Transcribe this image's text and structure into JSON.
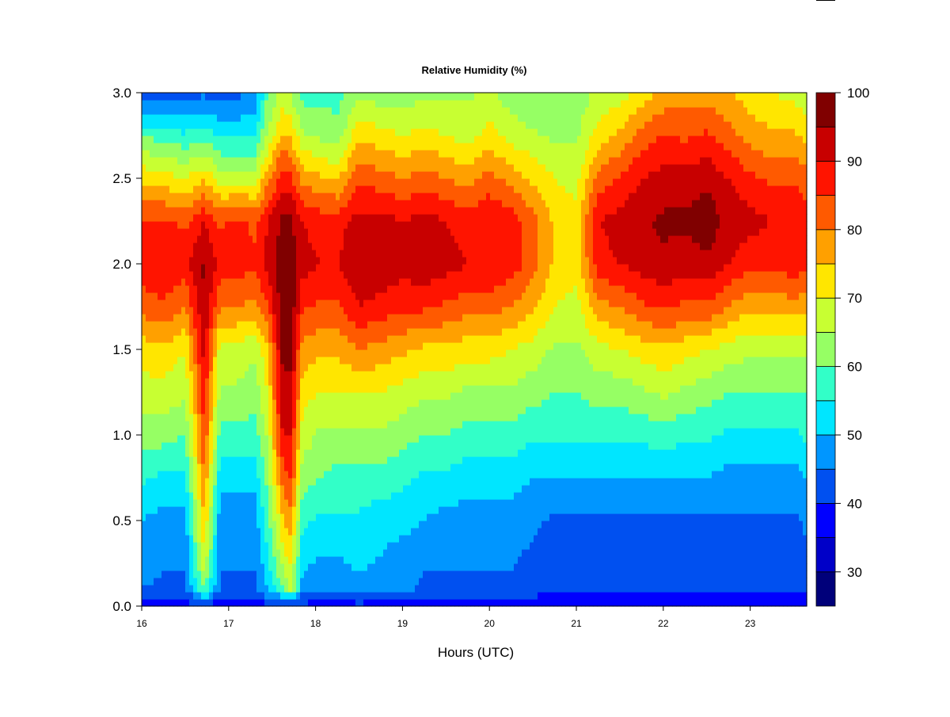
{
  "chart_data": {
    "type": "heatmap",
    "title": "Relative Humidity (%)",
    "xlabel": "Hours (UTC)",
    "ylabel": "",
    "xlim": [
      16,
      23.65
    ],
    "ylim": [
      0,
      3.0
    ],
    "x_ticks": [
      "16",
      "17",
      "18",
      "19",
      "20",
      "21",
      "22",
      "23"
    ],
    "y_ticks": [
      "0.0",
      "0.5",
      "1.0",
      "1.5",
      "2.0",
      "2.5",
      "3.0"
    ],
    "colorbar": {
      "ticks": [
        "30",
        "40",
        "50",
        "60",
        "70",
        "80",
        "90",
        "100"
      ],
      "levels": [
        25,
        30,
        35,
        40,
        45,
        50,
        55,
        60,
        65,
        70,
        75,
        80,
        85,
        90,
        95,
        100
      ],
      "colors": [
        "#00007a",
        "#0000c8",
        "#0000ff",
        "#0050f0",
        "#0096ff",
        "#00e6ff",
        "#32ffc8",
        "#96ff64",
        "#c8ff32",
        "#ffe600",
        "#ffa000",
        "#ff5a00",
        "#ff1400",
        "#c80000",
        "#800000"
      ]
    },
    "grid": false,
    "values_description_note": "",
    "x_samples": [
      16.0,
      16.25,
      16.5,
      16.72,
      16.9,
      17.1,
      17.3,
      17.45,
      17.62,
      17.72,
      17.85,
      18.05,
      18.25,
      18.5,
      18.75,
      19.0,
      19.25,
      19.5,
      19.75,
      20.0,
      20.25,
      20.5,
      20.75,
      21.0,
      21.25,
      21.5,
      21.75,
      22.0,
      22.25,
      22.5,
      22.75,
      23.0,
      23.25,
      23.5,
      23.65
    ],
    "y_samples": [
      0.0,
      0.1,
      0.3,
      0.5,
      0.75,
      1.0,
      1.25,
      1.5,
      1.75,
      2.0,
      2.25,
      2.5,
      2.75,
      3.0
    ],
    "z": [
      [
        38,
        45,
        48,
        50,
        56,
        62,
        68,
        72,
        82,
        88,
        86,
        74,
        60,
        40
      ],
      [
        38,
        44,
        46,
        48,
        54,
        62,
        68,
        74,
        84,
        90,
        86,
        72,
        58,
        42
      ],
      [
        37,
        44,
        46,
        48,
        54,
        60,
        66,
        70,
        80,
        88,
        84,
        70,
        56,
        42
      ],
      [
        40,
        60,
        70,
        75,
        80,
        85,
        88,
        92,
        95,
        96,
        90,
        74,
        58,
        44
      ],
      [
        36,
        44,
        46,
        47,
        52,
        58,
        64,
        68,
        80,
        88,
        84,
        68,
        54,
        42
      ],
      [
        36,
        44,
        46,
        47,
        52,
        58,
        64,
        68,
        80,
        88,
        86,
        68,
        54,
        44
      ],
      [
        36,
        44,
        46,
        47,
        52,
        58,
        62,
        66,
        78,
        86,
        84,
        68,
        54,
        46
      ],
      [
        38,
        50,
        55,
        58,
        62,
        66,
        70,
        74,
        85,
        92,
        90,
        78,
        66,
        60
      ],
      [
        38,
        60,
        68,
        74,
        82,
        90,
        94,
        96,
        98,
        98,
        96,
        88,
        76,
        66
      ],
      [
        36,
        66,
        72,
        78,
        86,
        90,
        94,
        96,
        98,
        98,
        96,
        86,
        74,
        64
      ],
      [
        38,
        48,
        52,
        56,
        62,
        68,
        72,
        78,
        86,
        92,
        90,
        78,
        66,
        58
      ],
      [
        38,
        46,
        50,
        54,
        60,
        64,
        70,
        76,
        84,
        90,
        88,
        76,
        64,
        58
      ],
      [
        38,
        46,
        50,
        54,
        58,
        64,
        70,
        76,
        84,
        90,
        88,
        74,
        62,
        58
      ],
      [
        38,
        48,
        52,
        54,
        58,
        64,
        70,
        80,
        90,
        94,
        92,
        84,
        74,
        64
      ],
      [
        38,
        46,
        50,
        52,
        58,
        64,
        70,
        78,
        88,
        94,
        92,
        82,
        72,
        62
      ],
      [
        38,
        46,
        48,
        52,
        56,
        62,
        68,
        76,
        86,
        92,
        90,
        80,
        70,
        62
      ],
      [
        38,
        44,
        46,
        50,
        54,
        60,
        66,
        74,
        86,
        94,
        92,
        82,
        72,
        64
      ],
      [
        38,
        44,
        46,
        48,
        54,
        60,
        66,
        74,
        84,
        92,
        90,
        80,
        70,
        64
      ],
      [
        38,
        44,
        46,
        48,
        52,
        58,
        64,
        72,
        82,
        90,
        88,
        78,
        68,
        64
      ],
      [
        38,
        44,
        46,
        48,
        52,
        58,
        64,
        72,
        82,
        90,
        90,
        82,
        72,
        66
      ],
      [
        38,
        44,
        46,
        48,
        52,
        58,
        64,
        70,
        80,
        88,
        88,
        78,
        68,
        62
      ],
      [
        38,
        42,
        44,
        46,
        50,
        56,
        62,
        68,
        76,
        82,
        82,
        74,
        66,
        60
      ],
      [
        36,
        40,
        42,
        44,
        50,
        56,
        60,
        64,
        70,
        74,
        74,
        70,
        64,
        60
      ],
      [
        36,
        40,
        42,
        44,
        50,
        56,
        60,
        64,
        68,
        72,
        72,
        68,
        64,
        62
      ],
      [
        36,
        40,
        42,
        44,
        50,
        56,
        62,
        68,
        78,
        88,
        90,
        82,
        72,
        66
      ],
      [
        36,
        40,
        42,
        44,
        50,
        56,
        62,
        70,
        80,
        90,
        92,
        86,
        76,
        68
      ],
      [
        36,
        40,
        42,
        44,
        50,
        56,
        64,
        72,
        84,
        92,
        94,
        90,
        82,
        72
      ],
      [
        36,
        40,
        42,
        44,
        50,
        58,
        66,
        74,
        86,
        94,
        96,
        92,
        86,
        76
      ],
      [
        36,
        40,
        42,
        44,
        50,
        56,
        64,
        72,
        84,
        92,
        96,
        92,
        84,
        78
      ],
      [
        36,
        40,
        42,
        44,
        50,
        56,
        62,
        70,
        84,
        94,
        98,
        94,
        86,
        78
      ],
      [
        36,
        40,
        42,
        44,
        48,
        54,
        60,
        68,
        80,
        90,
        94,
        90,
        82,
        76
      ],
      [
        36,
        40,
        42,
        44,
        48,
        54,
        60,
        66,
        76,
        86,
        92,
        86,
        78,
        72
      ],
      [
        36,
        40,
        42,
        44,
        48,
        54,
        60,
        66,
        76,
        86,
        90,
        84,
        76,
        70
      ],
      [
        36,
        40,
        42,
        44,
        48,
        54,
        60,
        66,
        78,
        88,
        90,
        84,
        76,
        68
      ],
      [
        36,
        42,
        44,
        46,
        50,
        56,
        60,
        66,
        76,
        86,
        88,
        82,
        74,
        66
      ]
    ]
  }
}
